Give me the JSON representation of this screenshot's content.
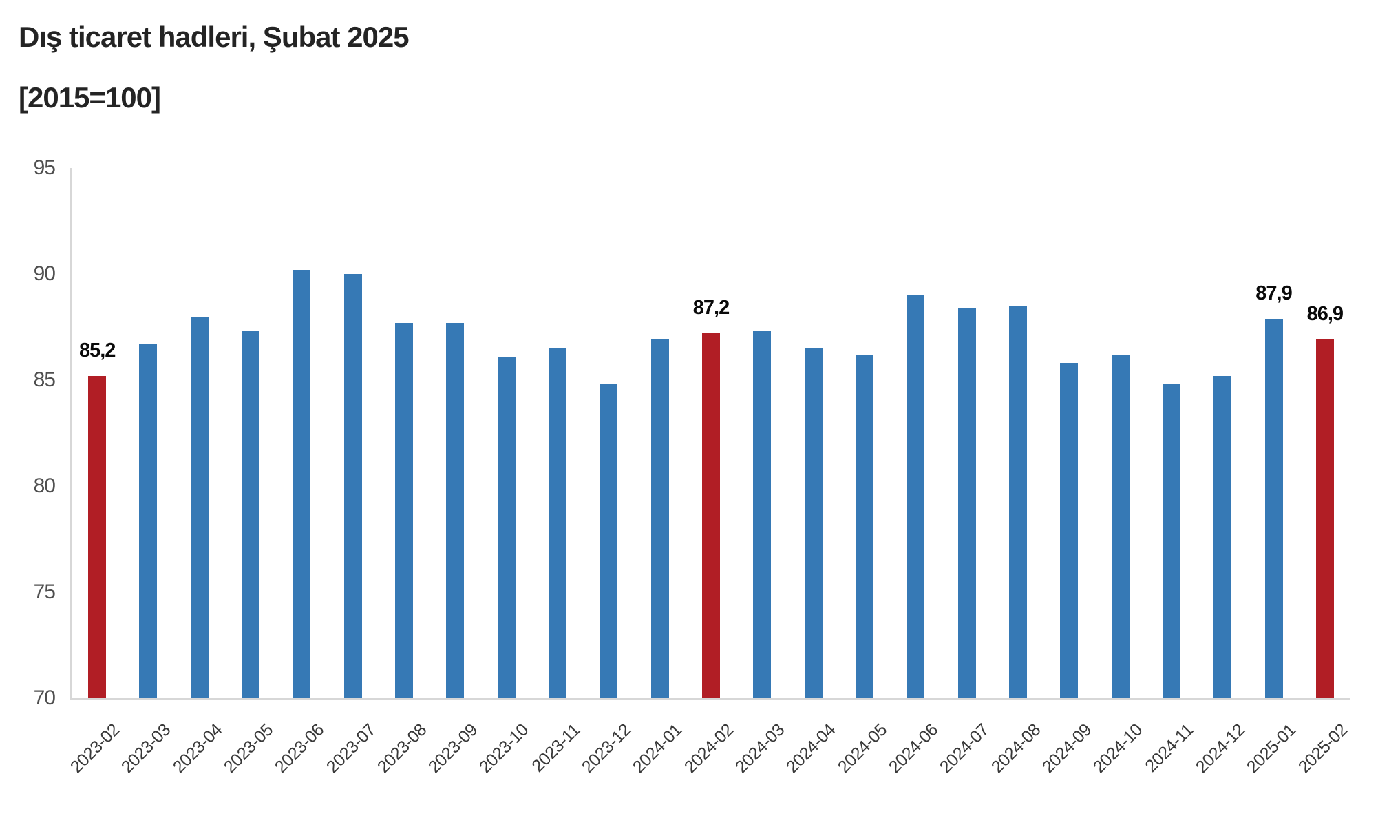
{
  "title": "Dış ticaret hadleri, Şubat 2025",
  "subtitle": "[2015=100]",
  "colors": {
    "bar_default": "#3679B5",
    "bar_highlight": "#B11E25",
    "axis_line": "#d7d7d7",
    "y_tick_text": "#4f4f4f",
    "x_tick_text": "#383838",
    "value_label_text": "#0a0a0a",
    "title_text": "#242424",
    "background": "#ffffff"
  },
  "chart_data": {
    "type": "bar",
    "title": "Dış ticaret hadleri, Şubat 2025",
    "subtitle": "[2015=100]",
    "xlabel": "",
    "ylabel": "",
    "ylim": [
      70,
      95
    ],
    "yticks": [
      95,
      90,
      85,
      80,
      75,
      70
    ],
    "grid": false,
    "legend": "none",
    "categories": [
      "2023-02",
      "2023-03",
      "2023-04",
      "2023-05",
      "2023-06",
      "2023-07",
      "2023-08",
      "2023-09",
      "2023-10",
      "2023-11",
      "2023-12",
      "2024-01",
      "2024-02",
      "2024-03",
      "2024-04",
      "2024-05",
      "2024-06",
      "2024-07",
      "2024-08",
      "2024-09",
      "2024-10",
      "2024-11",
      "2024-12",
      "2025-01",
      "2025-02"
    ],
    "values": [
      85.2,
      86.7,
      88.0,
      87.3,
      90.2,
      90.0,
      87.7,
      87.7,
      86.1,
      86.5,
      84.8,
      86.9,
      87.2,
      87.3,
      86.5,
      86.2,
      89.0,
      88.4,
      88.5,
      85.8,
      86.2,
      84.8,
      85.2,
      87.9,
      86.9
    ],
    "highlighted_categories": [
      "2023-02",
      "2024-02",
      "2025-02"
    ],
    "data_labels": {
      "2023-02": "85,2",
      "2024-02": "87,2",
      "2025-01": "87,9",
      "2025-02": "86,9"
    }
  }
}
